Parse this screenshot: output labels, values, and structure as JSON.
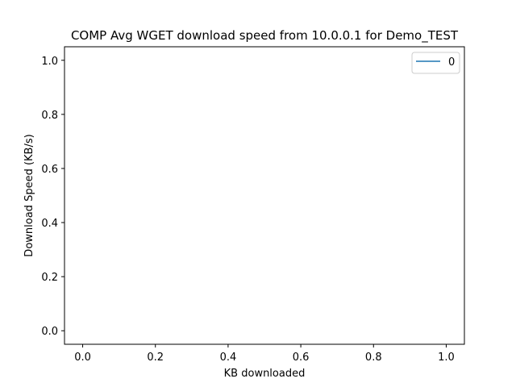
{
  "chart_data": {
    "type": "line",
    "title": "COMP Avg WGET download speed from 10.0.0.1 for Demo_TEST",
    "xlabel": "KB downloaded",
    "ylabel": "Download Speed (KB/s)",
    "xlim": [
      -0.05,
      1.05
    ],
    "ylim": [
      -0.05,
      1.05
    ],
    "xticks": [
      0.0,
      0.2,
      0.4,
      0.6,
      0.8,
      1.0
    ],
    "yticks": [
      0.0,
      0.2,
      0.4,
      0.6,
      0.8,
      1.0
    ],
    "xtick_labels": [
      "0.0",
      "0.2",
      "0.4",
      "0.6",
      "0.8",
      "1.0"
    ],
    "ytick_labels": [
      "0.0",
      "0.2",
      "0.4",
      "0.6",
      "0.8",
      "1.0"
    ],
    "grid": false,
    "legend_position": "top-right",
    "series": [
      {
        "name": "0",
        "color": "#1f77b4",
        "x": [],
        "y": []
      }
    ]
  }
}
